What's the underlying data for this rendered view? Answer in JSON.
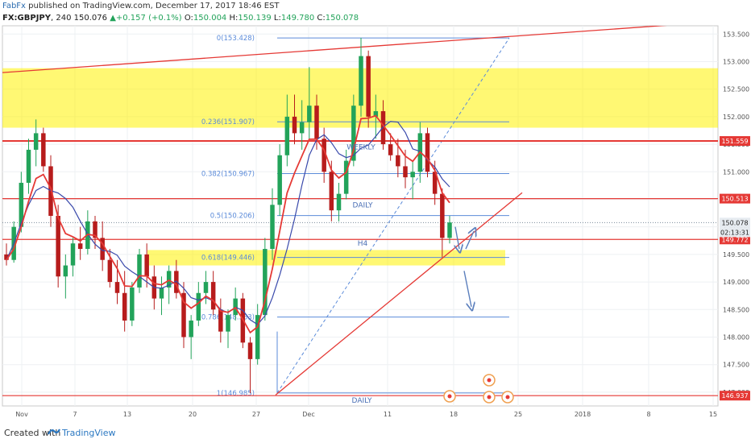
{
  "header": {
    "author": "FabFx",
    "published_text": "published on TradingView.com, December 17, 2017 18:46 EST",
    "symbol": "FX:GBPJPY",
    "interval": "240",
    "last": "150.076",
    "change": "+0.157 (+0.1%)",
    "open_label": "O:",
    "open": "150.004",
    "high_label": "H:",
    "high": "150.139",
    "low_label": "L:",
    "low": "149.780",
    "close_label": "C:",
    "close": "150.078"
  },
  "footer": {
    "created_with": "Created with",
    "brand": "TradingView"
  },
  "colors": {
    "up": "#22a35a",
    "down": "#b71c1c",
    "resistance": "#e53935",
    "fib": "#5b8bd9",
    "ema_red": "#e53935",
    "ma_blue": "#3949ab",
    "zone": "#fff200",
    "price_label": "#e53935"
  },
  "chart_data": {
    "type": "candlestick",
    "symbol": "FX:GBPJPY",
    "timeframe": "240",
    "y_axis": {
      "range": [
        146.75,
        153.65
      ],
      "ticks": [
        "153.500",
        "153.000",
        "152.500",
        "152.000",
        "151.500",
        "151.000",
        "150.500",
        "150.000",
        "149.500",
        "149.000",
        "148.500",
        "148.000",
        "147.500",
        "147.000"
      ]
    },
    "x_axis": {
      "ticks": [
        "Nov",
        "7",
        "13",
        "20",
        "27",
        "Dec",
        "11",
        "18",
        "25",
        "2018",
        "8",
        "15"
      ]
    },
    "fibonacci": [
      {
        "label": "0(153.428)",
        "price": 153.428
      },
      {
        "label": "0.236(151.907)",
        "price": 151.907
      },
      {
        "label": "0.382(150.967)",
        "price": 150.967
      },
      {
        "label": "0.5(150.206)",
        "price": 150.206
      },
      {
        "label": "0.618(149.446)",
        "price": 149.446
      },
      {
        "label": "0.786(148.363)",
        "price": 148.363
      },
      {
        "label": "1(146.985)",
        "price": 146.985
      }
    ],
    "horizontal_levels": [
      {
        "price": 151.559,
        "label": "151.559"
      },
      {
        "price": 150.513,
        "label": "150.513"
      },
      {
        "price": 149.772,
        "label": "149.772"
      },
      {
        "price": 146.937,
        "label": "146.937"
      }
    ],
    "price_labels": [
      {
        "price": 150.078,
        "label": "150.078"
      },
      {
        "price": 149.9,
        "label": "02:13:31"
      }
    ],
    "zones": [
      {
        "from": 151.8,
        "to": 152.88
      },
      {
        "from": 149.3,
        "to": 149.58
      }
    ],
    "annotations": [
      "WEEKLY",
      "DAILY",
      "H4",
      "DAILY"
    ],
    "candles": [
      {
        "o": 149.5,
        "h": 149.7,
        "l": 149.3,
        "c": 149.4
      },
      {
        "o": 149.4,
        "h": 150.1,
        "l": 149.35,
        "c": 150.0
      },
      {
        "o": 150.0,
        "h": 151.0,
        "l": 149.9,
        "c": 150.8
      },
      {
        "o": 150.8,
        "h": 151.6,
        "l": 150.6,
        "c": 151.4
      },
      {
        "o": 151.4,
        "h": 151.95,
        "l": 151.1,
        "c": 151.7
      },
      {
        "o": 151.7,
        "h": 151.8,
        "l": 151.0,
        "c": 151.1
      },
      {
        "o": 151.1,
        "h": 151.3,
        "l": 150.0,
        "c": 150.2
      },
      {
        "o": 150.2,
        "h": 150.4,
        "l": 148.9,
        "c": 149.1
      },
      {
        "o": 149.1,
        "h": 149.5,
        "l": 148.7,
        "c": 149.3
      },
      {
        "o": 149.3,
        "h": 149.8,
        "l": 149.1,
        "c": 149.7
      },
      {
        "o": 149.7,
        "h": 150.0,
        "l": 149.4,
        "c": 149.6
      },
      {
        "o": 149.6,
        "h": 150.3,
        "l": 149.5,
        "c": 150.1
      },
      {
        "o": 150.1,
        "h": 150.2,
        "l": 149.6,
        "c": 149.8
      },
      {
        "o": 149.8,
        "h": 150.1,
        "l": 149.2,
        "c": 149.4
      },
      {
        "o": 149.4,
        "h": 149.6,
        "l": 148.9,
        "c": 149.0
      },
      {
        "o": 149.0,
        "h": 149.4,
        "l": 148.6,
        "c": 148.8
      },
      {
        "o": 148.8,
        "h": 149.2,
        "l": 148.1,
        "c": 148.3
      },
      {
        "o": 148.3,
        "h": 149.0,
        "l": 148.2,
        "c": 148.9
      },
      {
        "o": 148.9,
        "h": 149.6,
        "l": 148.8,
        "c": 149.5
      },
      {
        "o": 149.5,
        "h": 149.7,
        "l": 148.9,
        "c": 149.1
      },
      {
        "o": 149.1,
        "h": 149.3,
        "l": 148.5,
        "c": 148.7
      },
      {
        "o": 148.7,
        "h": 149.1,
        "l": 148.4,
        "c": 148.9
      },
      {
        "o": 148.9,
        "h": 149.3,
        "l": 148.6,
        "c": 149.2
      },
      {
        "o": 149.2,
        "h": 149.4,
        "l": 148.7,
        "c": 148.8
      },
      {
        "o": 148.8,
        "h": 149.0,
        "l": 147.8,
        "c": 148.0
      },
      {
        "o": 148.0,
        "h": 148.4,
        "l": 147.6,
        "c": 148.3
      },
      {
        "o": 148.3,
        "h": 149.0,
        "l": 148.2,
        "c": 148.8
      },
      {
        "o": 148.8,
        "h": 149.2,
        "l": 148.6,
        "c": 149.0
      },
      {
        "o": 149.0,
        "h": 149.2,
        "l": 148.4,
        "c": 148.5
      },
      {
        "o": 148.5,
        "h": 148.7,
        "l": 147.9,
        "c": 148.1
      },
      {
        "o": 148.1,
        "h": 148.5,
        "l": 147.8,
        "c": 148.4
      },
      {
        "o": 148.4,
        "h": 148.9,
        "l": 148.3,
        "c": 148.7
      },
      {
        "o": 148.7,
        "h": 148.8,
        "l": 147.8,
        "c": 147.9
      },
      {
        "o": 147.9,
        "h": 148.0,
        "l": 146.98,
        "c": 147.6
      },
      {
        "o": 147.6,
        "h": 148.6,
        "l": 147.5,
        "c": 148.4
      },
      {
        "o": 148.4,
        "h": 149.8,
        "l": 148.3,
        "c": 149.6
      },
      {
        "o": 149.6,
        "h": 150.7,
        "l": 149.4,
        "c": 150.4
      },
      {
        "o": 150.4,
        "h": 151.5,
        "l": 150.2,
        "c": 151.3
      },
      {
        "o": 151.3,
        "h": 152.4,
        "l": 151.1,
        "c": 152.0
      },
      {
        "o": 152.0,
        "h": 152.4,
        "l": 151.5,
        "c": 151.7
      },
      {
        "o": 151.7,
        "h": 152.3,
        "l": 151.4,
        "c": 151.9
      },
      {
        "o": 151.9,
        "h": 152.9,
        "l": 151.6,
        "c": 152.2
      },
      {
        "o": 152.2,
        "h": 152.4,
        "l": 151.4,
        "c": 151.6
      },
      {
        "o": 151.6,
        "h": 151.8,
        "l": 150.8,
        "c": 151.0
      },
      {
        "o": 151.0,
        "h": 151.2,
        "l": 150.1,
        "c": 150.3
      },
      {
        "o": 150.3,
        "h": 150.8,
        "l": 150.1,
        "c": 150.6
      },
      {
        "o": 150.6,
        "h": 151.4,
        "l": 150.5,
        "c": 151.2
      },
      {
        "o": 151.2,
        "h": 152.4,
        "l": 151.1,
        "c": 152.2
      },
      {
        "o": 152.2,
        "h": 153.43,
        "l": 152.0,
        "c": 153.1
      },
      {
        "o": 153.1,
        "h": 153.2,
        "l": 151.8,
        "c": 152.0
      },
      {
        "o": 152.0,
        "h": 152.4,
        "l": 151.6,
        "c": 152.1
      },
      {
        "o": 152.1,
        "h": 152.3,
        "l": 151.4,
        "c": 151.5
      },
      {
        "o": 151.5,
        "h": 151.7,
        "l": 151.2,
        "c": 151.3
      },
      {
        "o": 151.3,
        "h": 151.6,
        "l": 150.9,
        "c": 151.1
      },
      {
        "o": 151.1,
        "h": 151.4,
        "l": 150.7,
        "c": 150.9
      },
      {
        "o": 150.9,
        "h": 151.2,
        "l": 150.5,
        "c": 151.0
      },
      {
        "o": 151.0,
        "h": 151.9,
        "l": 150.8,
        "c": 151.7
      },
      {
        "o": 151.7,
        "h": 151.8,
        "l": 150.9,
        "c": 151.0
      },
      {
        "o": 151.0,
        "h": 151.2,
        "l": 150.4,
        "c": 150.6
      },
      {
        "o": 150.6,
        "h": 150.7,
        "l": 149.45,
        "c": 149.8
      },
      {
        "o": 149.8,
        "h": 150.2,
        "l": 149.7,
        "c": 150.08
      }
    ]
  }
}
